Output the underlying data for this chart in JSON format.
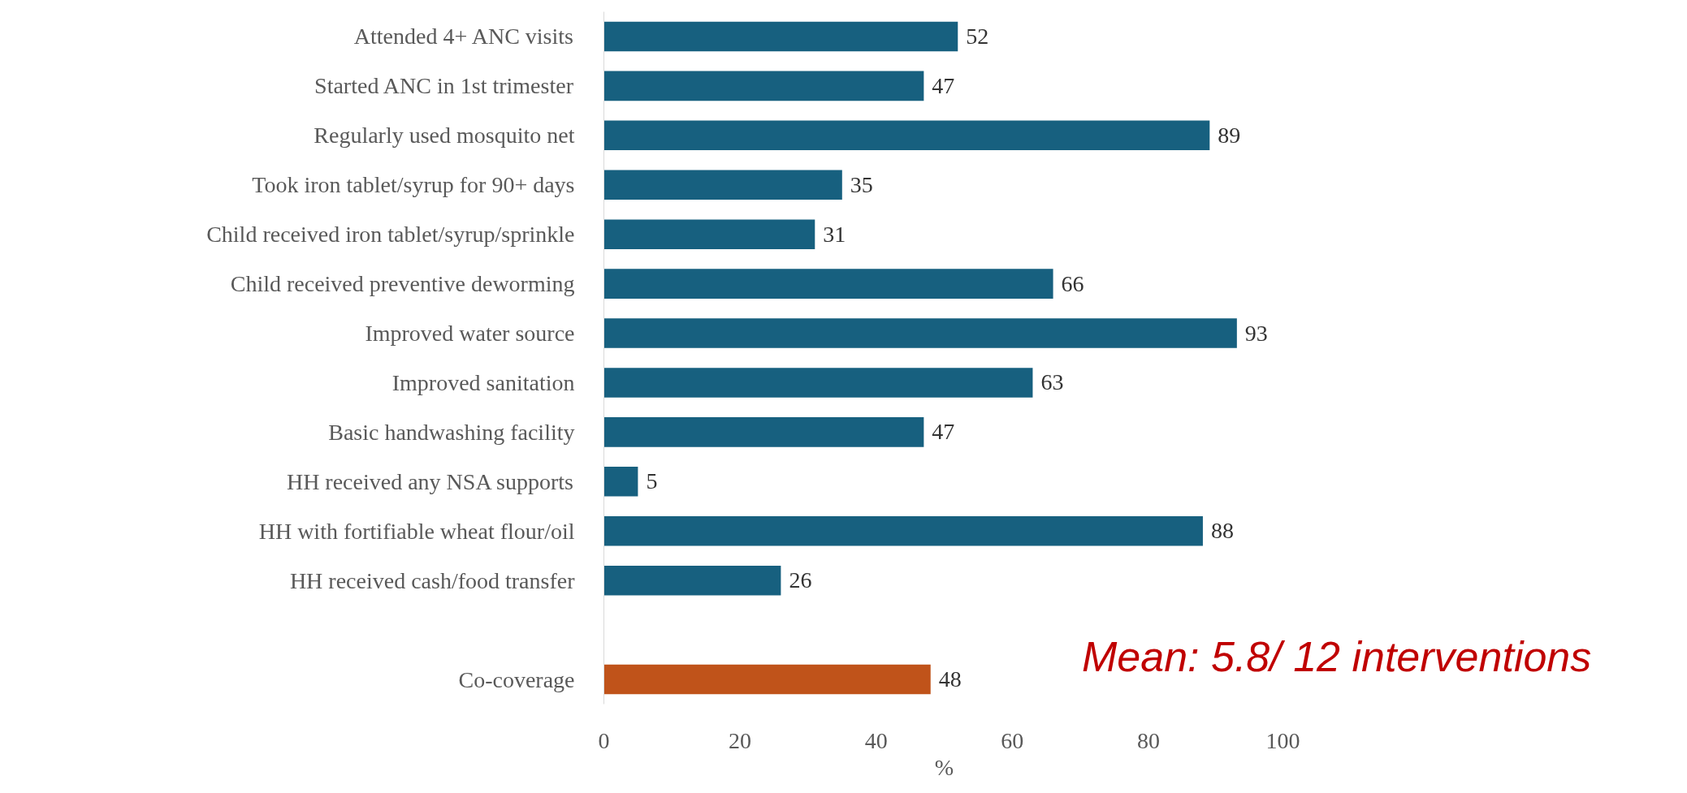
{
  "chart_data": {
    "type": "bar",
    "orientation": "horizontal",
    "xlabel": "%",
    "categories": [
      "Attended 4+ ANC visits",
      "Started ANC in 1st trimester",
      "Regularly used mosquito net",
      "Took iron tablet/syrup for 90+ days",
      "Child received iron tablet/syrup/sprinkle",
      "Child received preventive deworming",
      "Improved water source",
      "Improved sanitation",
      "Basic handwashing facility",
      "HH received any NSA supports",
      "HH with fortifiable wheat flour/oil",
      "HH received cash/food transfer",
      null,
      "Co-coverage"
    ],
    "values": [
      52,
      47,
      89,
      35,
      31,
      66,
      93,
      63,
      47,
      5,
      88,
      26,
      null,
      48
    ],
    "colors": [
      "#17607f",
      "#17607f",
      "#17607f",
      "#17607f",
      "#17607f",
      "#17607f",
      "#17607f",
      "#17607f",
      "#17607f",
      "#17607f",
      "#17607f",
      "#17607f",
      "#17607f",
      "#c0531a"
    ],
    "data_labels": true,
    "xlim": [
      0,
      100
    ],
    "xticks": [
      0,
      20,
      40,
      60,
      80,
      100
    ],
    "grid": false,
    "annotations": [
      "Mean: 5.8/ 12  interventions"
    ]
  }
}
